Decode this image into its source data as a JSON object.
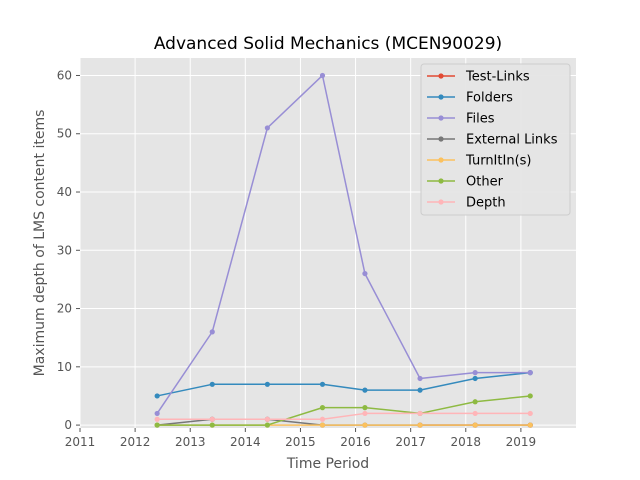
{
  "chart_data": {
    "type": "line",
    "title": "Advanced Solid Mechanics (MCEN90029)",
    "xlabel": "Time Period",
    "ylabel": "Maximum depth of LMS content items",
    "xlim": [
      2011,
      2020
    ],
    "ylim": [
      -0.5,
      63
    ],
    "xticks": [
      "2011",
      "2012",
      "2013",
      "2014",
      "2015",
      "2016",
      "2017",
      "2018",
      "2019"
    ],
    "yticks": [
      "0",
      "10",
      "20",
      "30",
      "40",
      "50",
      "60"
    ],
    "grid": true,
    "legend_position": "top-right",
    "x": [
      2012.4,
      2013.4,
      2014.4,
      2015.4,
      2016.17,
      2017.17,
      2018.17,
      2019.17
    ],
    "series": [
      {
        "name": "Test-Links",
        "color": "#e24a33",
        "values": [
          null,
          null,
          null,
          null,
          null,
          0,
          0,
          0
        ]
      },
      {
        "name": "Folders",
        "color": "#348abd",
        "values": [
          5,
          7,
          7,
          7,
          6,
          6,
          8,
          9
        ]
      },
      {
        "name": "Files",
        "color": "#988ed5",
        "values": [
          2,
          16,
          51,
          60,
          26,
          8,
          9,
          9
        ]
      },
      {
        "name": "External Links",
        "color": "#777777",
        "values": [
          0,
          1,
          1,
          0,
          0,
          0,
          0,
          0
        ]
      },
      {
        "name": "TurnItIn(s)",
        "color": "#fbc15e",
        "values": [
          0,
          0,
          0,
          0,
          0,
          0,
          0,
          0
        ]
      },
      {
        "name": "Other",
        "color": "#8eba42",
        "values": [
          0,
          0,
          0,
          3,
          3,
          2,
          4,
          5
        ]
      },
      {
        "name": "Depth",
        "color": "#ffb5b8",
        "values": [
          1,
          1,
          1,
          1,
          2,
          2,
          2,
          2
        ]
      }
    ]
  }
}
